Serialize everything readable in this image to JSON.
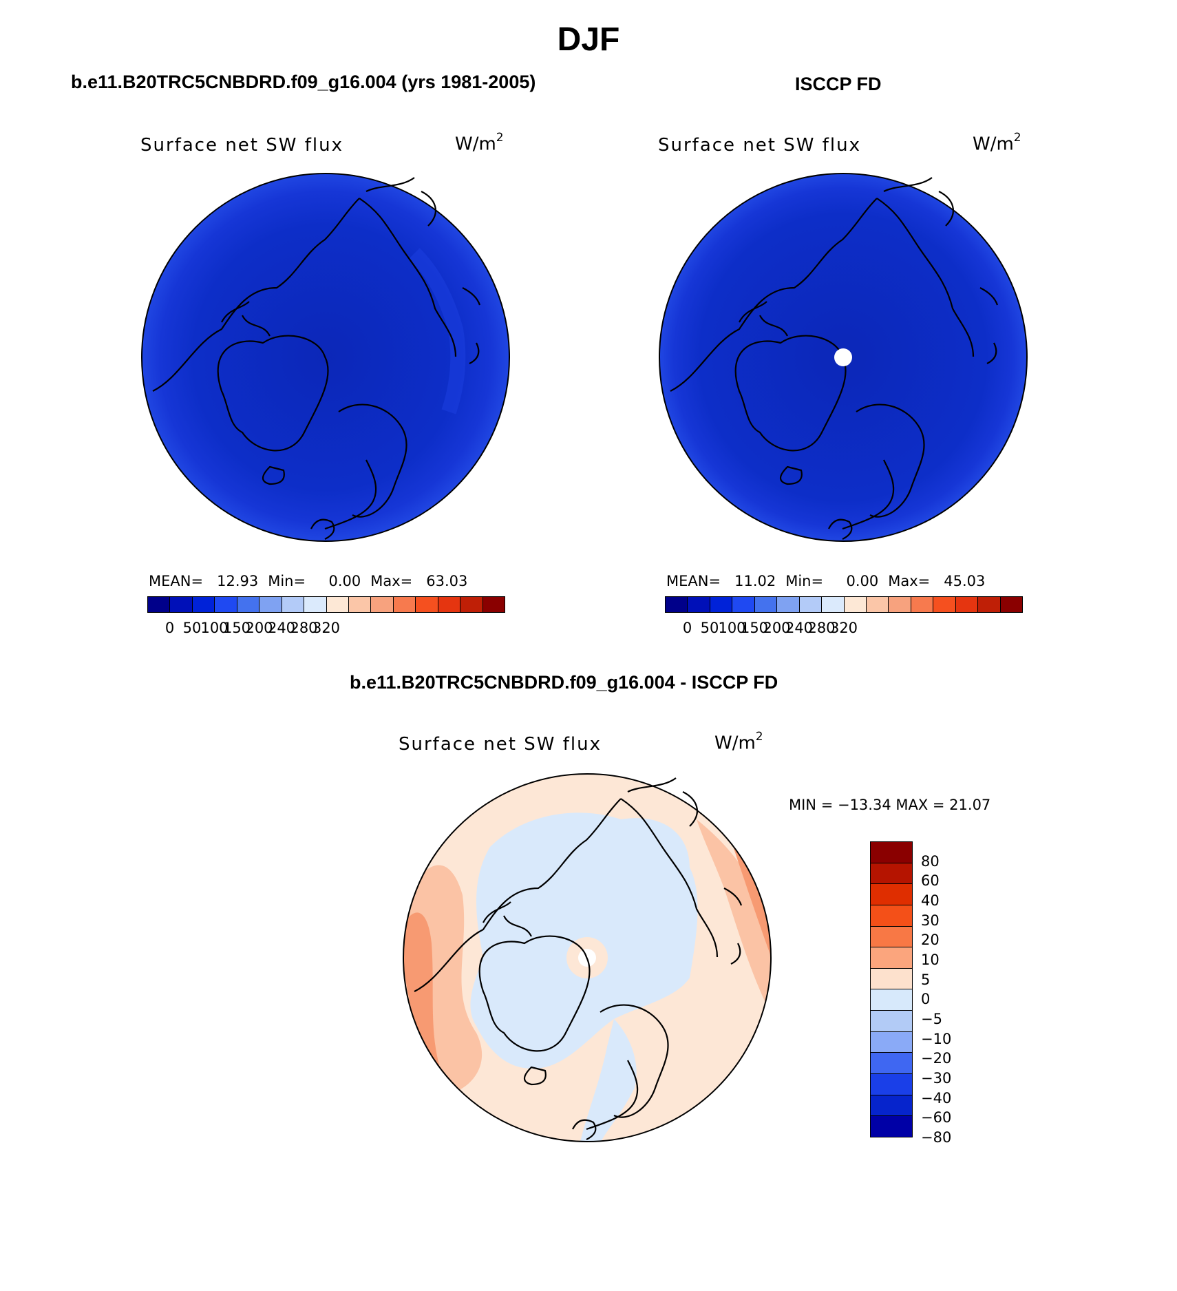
{
  "figure": {
    "title": "DJF"
  },
  "panels": {
    "model": {
      "title": "b.e11.B20TRC5CNBDRD.f09_g16.004 (yrs 1981-2005)",
      "variable": "Surface net SW flux",
      "units_base": "W/m",
      "units_exp": "2",
      "stats": {
        "mean_label": "MEAN=",
        "mean": "12.93",
        "min_label": "Min=",
        "min": "0.00",
        "max_label": "Max=",
        "max": "63.03"
      }
    },
    "obs": {
      "title": "ISCCP FD",
      "variable": "Surface net SW flux",
      "units_base": "W/m",
      "units_exp": "2",
      "stats": {
        "mean_label": "MEAN=",
        "mean": "11.02",
        "min_label": "Min=",
        "min": "0.00",
        "max_label": "Max=",
        "max": "45.03"
      }
    },
    "diff": {
      "title": "b.e11.B20TRC5CNBDRD.f09_g16.004 - ISCCP FD",
      "variable": "Surface net SW flux",
      "units_base": "W/m",
      "units_exp": "2",
      "minmax": "MIN = −13.34 MAX =  21.07"
    }
  },
  "colorbars": {
    "field": {
      "colors": [
        "#00008a",
        "#0010b8",
        "#0022d8",
        "#1f49f2",
        "#4472ee",
        "#7fa2f2",
        "#b3cbf8",
        "#dbeafc",
        "#fde8d6",
        "#fbc6a8",
        "#f7a27e",
        "#f77a4e",
        "#f5501f",
        "#e53510",
        "#bf1f06",
        "#8a0000"
      ],
      "tick_labels": [
        "0",
        "50",
        "100",
        "150",
        "200",
        "240",
        "280",
        "320"
      ]
    },
    "diff": {
      "colors": [
        "#8a0000",
        "#b51400",
        "#df2e00",
        "#f45018",
        "#f87845",
        "#fba57d",
        "#fde1cd",
        "#d7e9fb",
        "#b2cbf6",
        "#8aaaf7",
        "#3f67f2",
        "#1a3fe8",
        "#0624cc",
        "#0000a6"
      ],
      "labels": [
        "80",
        "60",
        "40",
        "30",
        "20",
        "10",
        "5",
        "0",
        "−5",
        "−10",
        "−20",
        "−30",
        "−40",
        "−60",
        "−80"
      ]
    }
  },
  "map_colors": {
    "field_base": "#0d2ec8",
    "field_mid": "#1636d6",
    "field_edge": "#2046e2",
    "field_polar": "#0c27b8",
    "diff_base": "#fde7d6",
    "diff_light_blue": "#d9e9fb",
    "diff_warm": "#fbc3a5",
    "diff_hot": "#f79a72",
    "missing": "#ffffff"
  }
}
